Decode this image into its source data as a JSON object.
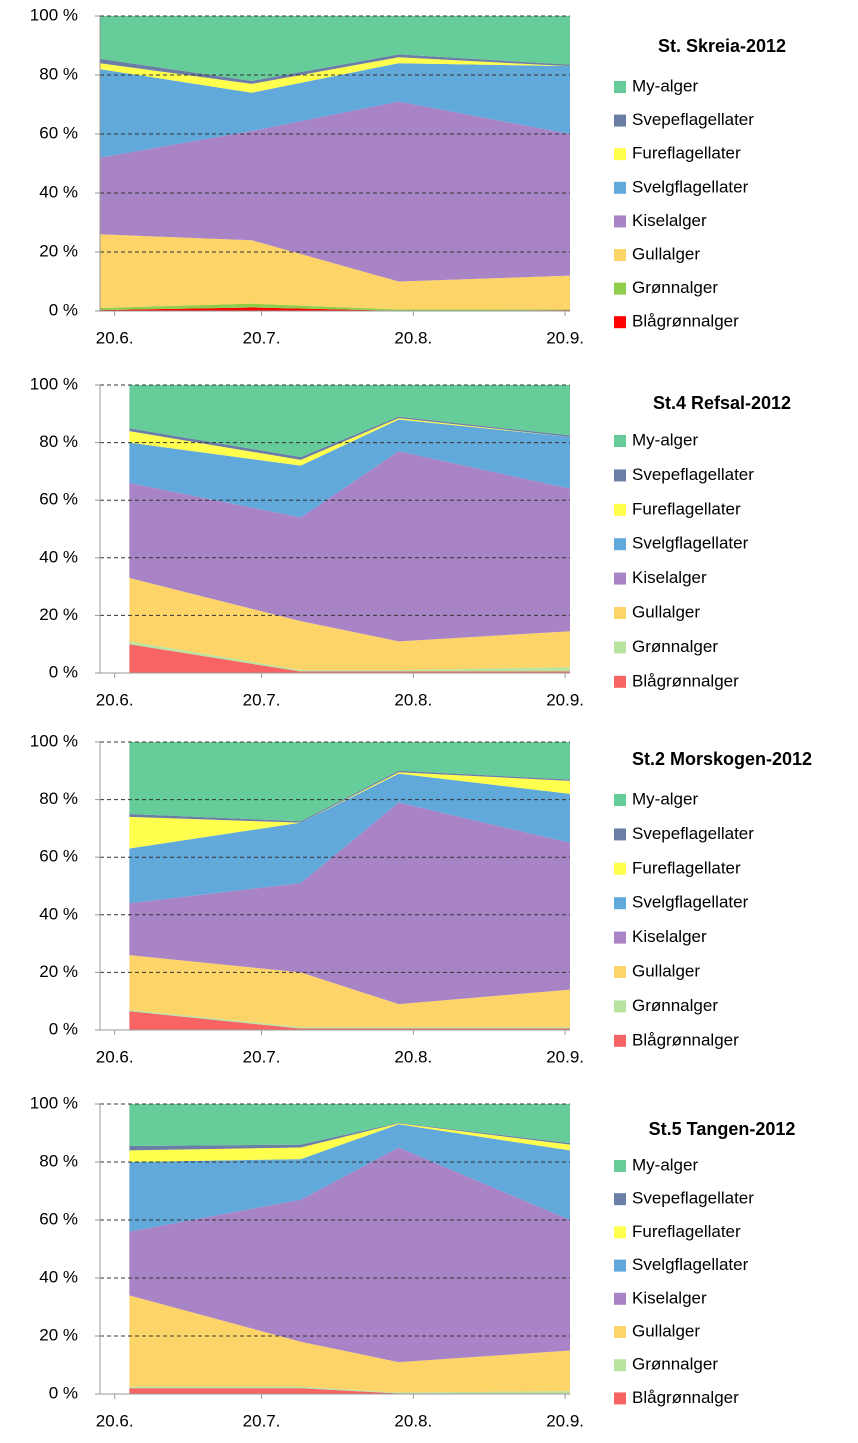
{
  "chart_data": [
    {
      "type": "area",
      "title": "St. Skreia-2012",
      "x": [
        169,
        200,
        230,
        265
      ],
      "xlim": [
        169,
        265
      ],
      "xticks": [
        {
          "value": 172,
          "label": "20.6."
        },
        {
          "value": 202,
          "label": "20.7."
        },
        {
          "value": 233,
          "label": "20.8."
        },
        {
          "value": 264,
          "label": "20.9."
        }
      ],
      "ylim": [
        0,
        100
      ],
      "yticks": [
        {
          "value": 0,
          "label": "0 %"
        },
        {
          "value": 20,
          "label": "20 %"
        },
        {
          "value": 40,
          "label": "40 %"
        },
        {
          "value": 60,
          "label": "60 %"
        },
        {
          "value": 80,
          "label": "80 %"
        },
        {
          "value": 100,
          "label": "100 %"
        }
      ],
      "grid": true,
      "series": [
        {
          "name": "Blågrønnalger",
          "color": "#ff0000",
          "values": [
            0.3,
            1.2,
            0.1,
            0.3
          ]
        },
        {
          "name": "Grønnalger",
          "color": "#8fce4a",
          "values": [
            0.7,
            1.3,
            0.4,
            0.2
          ]
        },
        {
          "name": "Gullalger",
          "color": "#fcd468",
          "values": [
            25,
            21.5,
            9.5,
            11.5
          ]
        },
        {
          "name": "Kiselalger",
          "color": "#a884c7",
          "values": [
            26,
            37,
            61,
            48
          ]
        },
        {
          "name": "Svelgflagellater",
          "color": "#61a8db",
          "values": [
            30,
            13,
            13,
            23
          ]
        },
        {
          "name": "Fureflagellater",
          "color": "#ffff4d",
          "values": [
            2,
            3,
            2,
            0
          ]
        },
        {
          "name": "Svepeflagellater",
          "color": "#6b7fa6",
          "values": [
            1.5,
            1,
            1,
            0.5
          ]
        },
        {
          "name": "My-alger",
          "color": "#66cc99",
          "values": [
            14.5,
            22,
            13,
            16.5
          ]
        }
      ]
    },
    {
      "type": "area",
      "title": "St.4 Refsal-2012",
      "x": [
        175,
        210,
        230,
        265
      ],
      "xlim": [
        169,
        265
      ],
      "xticks": [
        {
          "value": 172,
          "label": "20.6."
        },
        {
          "value": 202,
          "label": "20.7."
        },
        {
          "value": 233,
          "label": "20.8."
        },
        {
          "value": 264,
          "label": "20.9."
        }
      ],
      "ylim": [
        0,
        100
      ],
      "yticks": [
        {
          "value": 0,
          "label": "0 %"
        },
        {
          "value": 20,
          "label": "20 %"
        },
        {
          "value": 40,
          "label": "40 %"
        },
        {
          "value": 60,
          "label": "60 %"
        },
        {
          "value": 80,
          "label": "80 %"
        },
        {
          "value": 100,
          "label": "100 %"
        }
      ],
      "grid": true,
      "series": [
        {
          "name": "Blågrønnalger",
          "color": "#f86464",
          "values": [
            10,
            0.5,
            0.5,
            0.5
          ]
        },
        {
          "name": "Grønnalger",
          "color": "#b9e4a0",
          "values": [
            1,
            0.5,
            0.5,
            1.5
          ]
        },
        {
          "name": "Gullalger",
          "color": "#fcd468",
          "values": [
            22,
            17,
            10,
            12.5
          ]
        },
        {
          "name": "Kiselalger",
          "color": "#a884c7",
          "values": [
            33,
            36,
            66,
            49.5
          ]
        },
        {
          "name": "Svelgflagellater",
          "color": "#61a8db",
          "values": [
            14,
            18,
            11,
            18
          ]
        },
        {
          "name": "Fureflagellater",
          "color": "#ffff4d",
          "values": [
            4,
            2,
            0.5,
            0
          ]
        },
        {
          "name": "Svepeflagellater",
          "color": "#6b7fa6",
          "values": [
            1,
            1,
            0.5,
            0.5
          ]
        },
        {
          "name": "My-alger",
          "color": "#66cc99",
          "values": [
            15,
            25,
            11,
            17.5
          ]
        }
      ]
    },
    {
      "type": "area",
      "title": "St.2 Morskogen-2012",
      "x": [
        175,
        210,
        230,
        265
      ],
      "xlim": [
        169,
        265
      ],
      "xticks": [
        {
          "value": 172,
          "label": "20.6."
        },
        {
          "value": 202,
          "label": "20.7."
        },
        {
          "value": 233,
          "label": "20.8."
        },
        {
          "value": 264,
          "label": "20.9."
        }
      ],
      "ylim": [
        0,
        100
      ],
      "yticks": [
        {
          "value": 0,
          "label": "0 %"
        },
        {
          "value": 20,
          "label": "20 %"
        },
        {
          "value": 40,
          "label": "40 %"
        },
        {
          "value": 60,
          "label": "60 %"
        },
        {
          "value": 80,
          "label": "80 %"
        },
        {
          "value": 100,
          "label": "100 %"
        }
      ],
      "grid": true,
      "series": [
        {
          "name": "Blågrønnalger",
          "color": "#f86464",
          "values": [
            6.5,
            0.5,
            0.5,
            0.5
          ]
        },
        {
          "name": "Grønnalger",
          "color": "#b9e4a0",
          "values": [
            0.5,
            0.5,
            0.5,
            0.5
          ]
        },
        {
          "name": "Gullalger",
          "color": "#fcd468",
          "values": [
            19,
            19,
            8,
            13
          ]
        },
        {
          "name": "Kiselalger",
          "color": "#a884c7",
          "values": [
            18,
            31,
            70,
            51
          ]
        },
        {
          "name": "Svelgflagellater",
          "color": "#61a8db",
          "values": [
            19,
            21,
            10,
            17
          ]
        },
        {
          "name": "Fureflagellater",
          "color": "#ffff4d",
          "values": [
            11,
            0,
            0.5,
            4.5
          ]
        },
        {
          "name": "Svepeflagellater",
          "color": "#6b7fa6",
          "values": [
            1,
            0.5,
            0.5,
            0.5
          ]
        },
        {
          "name": "My-alger",
          "color": "#66cc99",
          "values": [
            25,
            27.5,
            10,
            13
          ]
        }
      ]
    },
    {
      "type": "area",
      "title": "St.5 Tangen-2012",
      "x": [
        175,
        210,
        230,
        265
      ],
      "xlim": [
        169,
        265
      ],
      "xticks": [
        {
          "value": 172,
          "label": "20.6."
        },
        {
          "value": 202,
          "label": "20.7."
        },
        {
          "value": 233,
          "label": "20.8."
        },
        {
          "value": 264,
          "label": "20.9."
        }
      ],
      "ylim": [
        0,
        100
      ],
      "yticks": [
        {
          "value": 0,
          "label": "0 %"
        },
        {
          "value": 20,
          "label": "20 %"
        },
        {
          "value": 40,
          "label": "40 %"
        },
        {
          "value": 60,
          "label": "60 %"
        },
        {
          "value": 80,
          "label": "80 %"
        },
        {
          "value": 100,
          "label": "100 %"
        }
      ],
      "grid": true,
      "series": [
        {
          "name": "Blågrønnalger",
          "color": "#f86464",
          "values": [
            2,
            2,
            0.2,
            0.2
          ]
        },
        {
          "name": "Grønnalger",
          "color": "#b9e4a0",
          "values": [
            0.5,
            0.5,
            0.3,
            0.8
          ]
        },
        {
          "name": "Gullalger",
          "color": "#fcd468",
          "values": [
            31.5,
            15.5,
            10.5,
            14
          ]
        },
        {
          "name": "Kiselalger",
          "color": "#a884c7",
          "values": [
            22,
            49,
            74,
            45
          ]
        },
        {
          "name": "Svelgflagellater",
          "color": "#61a8db",
          "values": [
            24,
            14,
            8,
            24
          ]
        },
        {
          "name": "Fureflagellater",
          "color": "#ffff4d",
          "values": [
            4,
            4,
            0.3,
            2
          ]
        },
        {
          "name": "Svepeflagellater",
          "color": "#6b7fa6",
          "values": [
            1.5,
            1,
            0.2,
            0.5
          ]
        },
        {
          "name": "My-alger",
          "color": "#66cc99",
          "values": [
            14.5,
            14,
            6.5,
            13.5
          ]
        }
      ]
    }
  ]
}
